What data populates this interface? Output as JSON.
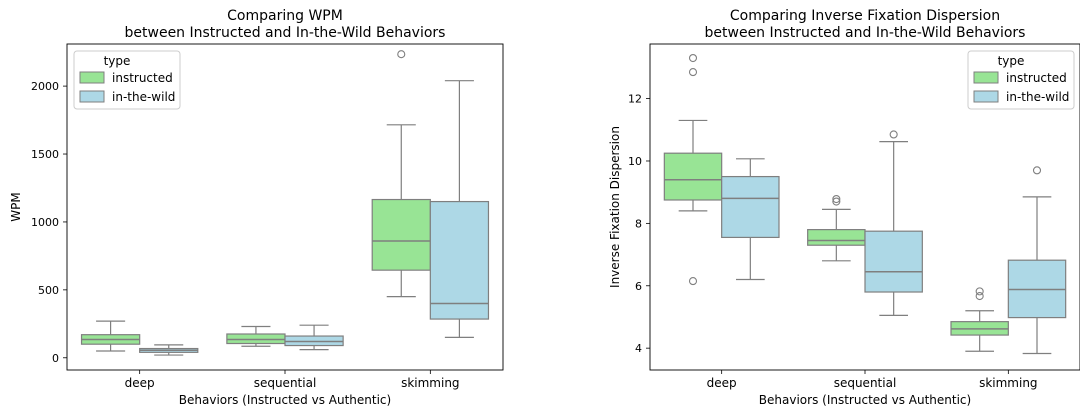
{
  "chart_data": [
    {
      "type": "boxplot",
      "title_lines": [
        "Comparing WPM",
        "between Instructed and In-the-Wild Behaviors"
      ],
      "xlabel": "Behaviors (Instructed vs Authentic)",
      "ylabel": "WPM",
      "categories": [
        "deep",
        "sequential",
        "skimming"
      ],
      "ylim": [
        -90,
        2310
      ],
      "yticks": [
        0,
        500,
        1000,
        1500,
        2000
      ],
      "legend": {
        "title": "type",
        "position": "top-left",
        "entries": [
          {
            "label": "instructed",
            "color": "#98e495"
          },
          {
            "label": "in-the-wild",
            "color": "#add8e6"
          }
        ]
      },
      "series": [
        {
          "name": "instructed",
          "color": "#98e495",
          "boxes": [
            {
              "whislo": 50,
              "q1": 100,
              "med": 135,
              "q3": 170,
              "whishi": 270,
              "fliers": []
            },
            {
              "whislo": 85,
              "q1": 105,
              "med": 135,
              "q3": 175,
              "whishi": 230,
              "fliers": []
            },
            {
              "whislo": 450,
              "q1": 645,
              "med": 860,
              "q3": 1165,
              "whishi": 1715,
              "fliers": [
                2235
              ]
            }
          ]
        },
        {
          "name": "in-the-wild",
          "color": "#add8e6",
          "boxes": [
            {
              "whislo": 20,
              "q1": 40,
              "med": 55,
              "q3": 68,
              "whishi": 95,
              "fliers": []
            },
            {
              "whislo": 60,
              "q1": 90,
              "med": 120,
              "q3": 160,
              "whishi": 240,
              "fliers": []
            },
            {
              "whislo": 150,
              "q1": 285,
              "med": 400,
              "q3": 1150,
              "whishi": 2040,
              "fliers": []
            }
          ]
        }
      ]
    },
    {
      "type": "boxplot",
      "title_lines": [
        "Comparing Inverse Fixation Dispersion",
        "between Instructed and In-the-Wild Behaviors"
      ],
      "xlabel": "Behaviors (Instructed vs Authentic)",
      "ylabel": "Inverse Fixation Dispersion",
      "categories": [
        "deep",
        "sequential",
        "skimming"
      ],
      "ylim": [
        3.3,
        13.75
      ],
      "yticks": [
        4,
        6,
        8,
        10,
        12
      ],
      "legend": {
        "title": "type",
        "position": "top-right",
        "entries": [
          {
            "label": "instructed",
            "color": "#98e495"
          },
          {
            "label": "in-the-wild",
            "color": "#add8e6"
          }
        ]
      },
      "series": [
        {
          "name": "instructed",
          "color": "#98e495",
          "boxes": [
            {
              "whislo": 8.4,
              "q1": 8.75,
              "med": 9.4,
              "q3": 10.25,
              "whishi": 11.3,
              "fliers": [
                6.15,
                12.85,
                13.3
              ]
            },
            {
              "whislo": 6.8,
              "q1": 7.3,
              "med": 7.45,
              "q3": 7.8,
              "whishi": 8.45,
              "fliers": [
                8.7,
                8.78
              ]
            },
            {
              "whislo": 3.9,
              "q1": 4.42,
              "med": 4.62,
              "q3": 4.85,
              "whishi": 5.2,
              "fliers": [
                5.67,
                5.82
              ]
            }
          ]
        },
        {
          "name": "in-the-wild",
          "color": "#add8e6",
          "boxes": [
            {
              "whislo": 6.2,
              "q1": 7.55,
              "med": 8.8,
              "q3": 9.5,
              "whishi": 10.07,
              "fliers": []
            },
            {
              "whislo": 5.05,
              "q1": 5.8,
              "med": 6.45,
              "q3": 7.75,
              "whishi": 10.62,
              "fliers": [
                10.85
              ]
            },
            {
              "whislo": 3.83,
              "q1": 4.98,
              "med": 5.88,
              "q3": 6.82,
              "whishi": 8.85,
              "fliers": [
                9.7
              ]
            }
          ]
        }
      ]
    }
  ]
}
